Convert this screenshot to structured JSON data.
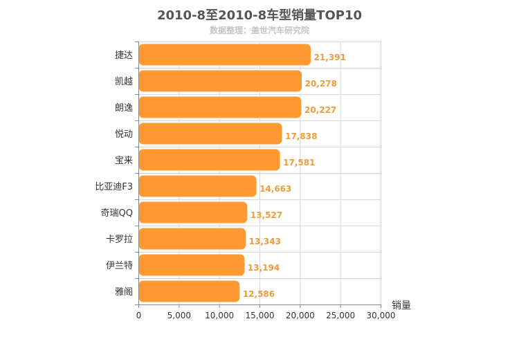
{
  "chart_data": {
    "type": "bar",
    "orientation": "horizontal",
    "title": "2010-8至2010-8车型销量TOP10",
    "subtitle": "数据整理：盖世汽车研究院",
    "xlabel": "销量",
    "ylabel": "",
    "categories": [
      "捷达",
      "凯越",
      "朗逸",
      "悦动",
      "宝来",
      "比亚迪F3",
      "奇瑞QQ",
      "卡罗拉",
      "伊兰特",
      "雅阁"
    ],
    "values": [
      21391,
      20278,
      20227,
      17838,
      17581,
      14663,
      13527,
      13343,
      13194,
      12586
    ],
    "value_labels": [
      "21,391",
      "20,278",
      "20,227",
      "17,838",
      "17,581",
      "14,663",
      "13,527",
      "13,343",
      "13,194",
      "12,586"
    ],
    "xlim": [
      0,
      30000
    ],
    "xticks": [
      0,
      5000,
      10000,
      15000,
      20000,
      25000,
      30000
    ],
    "xtick_labels": [
      "0",
      "5,000",
      "10,000",
      "15,000",
      "20,000",
      "25,000",
      "30,000"
    ],
    "grid": true,
    "legend": "none",
    "colors": {
      "bar": "#ff9933",
      "bar_stroke": "#ffffff",
      "value_label": "#f29b3a",
      "grid": "#d8d8d8",
      "axis": "#888888"
    }
  }
}
